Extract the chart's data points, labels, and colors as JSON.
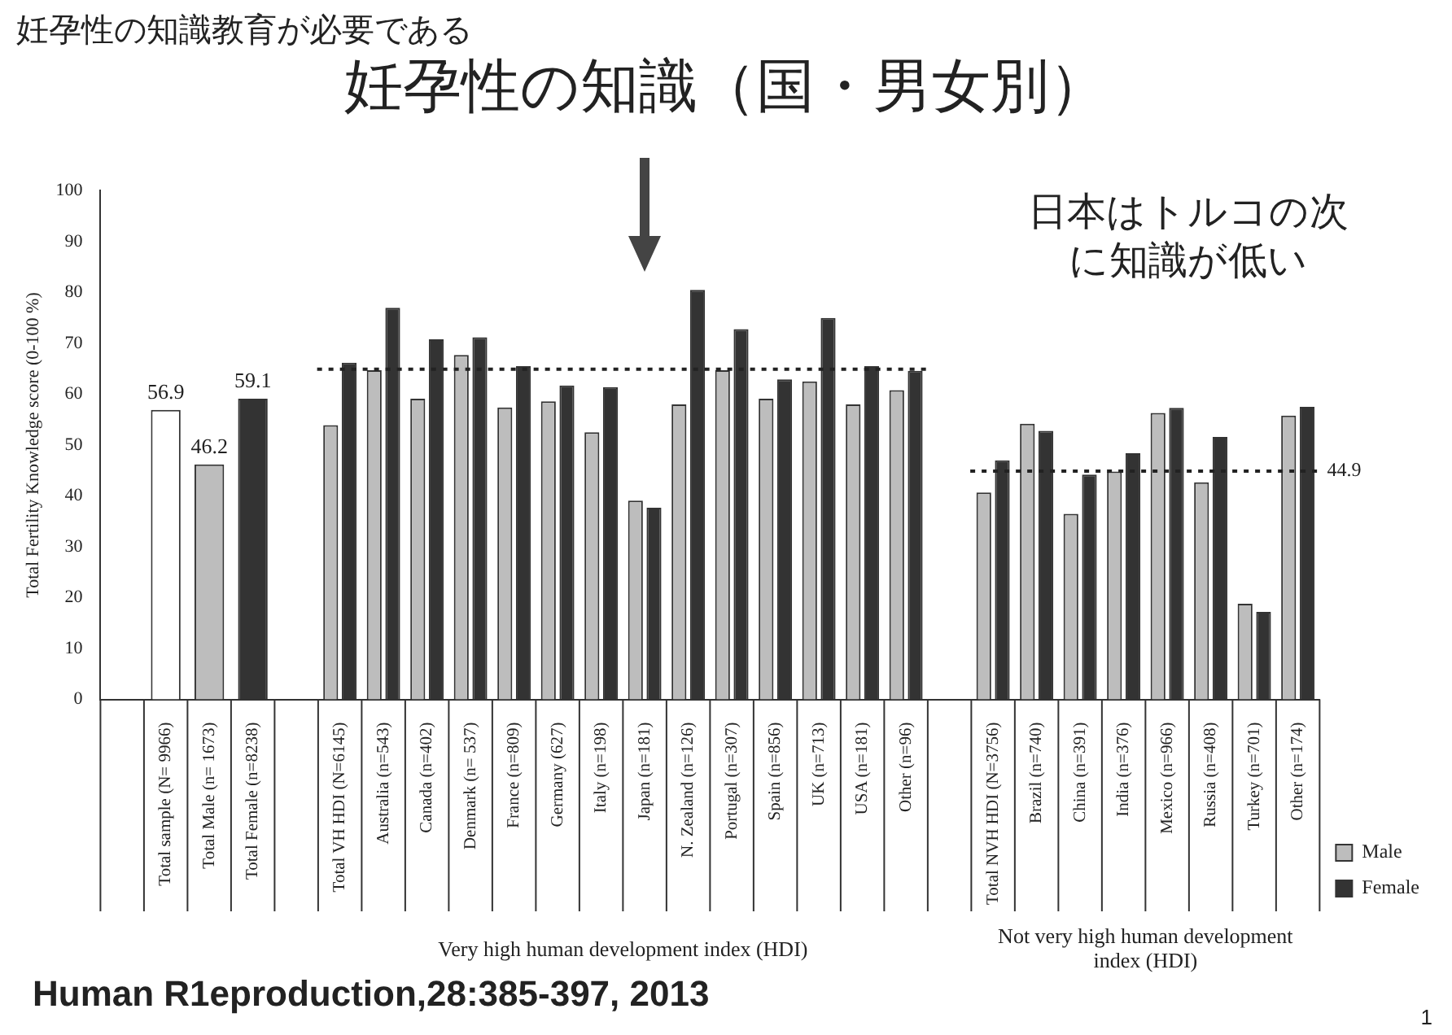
{
  "chart_data": {
    "type": "bar",
    "title": "妊孕性の知識教育が必要である",
    "subtitle": "妊孕性の知識（国・男女別）",
    "ylabel": "Total Fertility Knowledge score (0-100 %)",
    "categories": [
      null,
      "Total sample (N= 9966)",
      "Total Male (n= 1673)",
      "Total Female (n=8238)",
      null,
      "Total VH HDI (N=6145)",
      "Australia (n=543)",
      "Canada (n=402)",
      "Denmark (n= 537)",
      "France (n=809)",
      "Germany (627)",
      "Italy (n=198)",
      "Japan (n=181)",
      "N. Zealand (n=126)",
      "Portugal (n=307)",
      "Spain (n=856)",
      "UK (n=713)",
      "USA (n=181)",
      "Other (n=96)",
      null,
      "Total NVH HDI (N=3756)",
      "Brazil (n=740)",
      "China (n=391)",
      "India (n=376)",
      "Mexico (n=966)",
      "Russia (n=408)",
      "Turkey (n=701)",
      "Other (n=174)"
    ],
    "series": [
      {
        "color": "#ffffff",
        "values": [
          null,
          56.9,
          null,
          null,
          null,
          null,
          null,
          null,
          null,
          null,
          null,
          null,
          null,
          null,
          null,
          null,
          null,
          null,
          null,
          null,
          null,
          null,
          null,
          null,
          null,
          null,
          null,
          null
        ],
        "value_labels": [
          null,
          "56.9",
          null,
          null,
          null,
          null,
          null,
          null,
          null,
          null,
          null,
          null,
          null,
          null,
          null,
          null,
          null,
          null,
          null,
          null,
          null,
          null,
          null,
          null,
          null,
          null,
          null,
          null
        ]
      },
      {
        "name": "Male",
        "color": "#bdbdbd",
        "values": [
          null,
          null,
          46.2,
          null,
          null,
          53.9,
          64.7,
          59.1,
          67.7,
          57.4,
          58.6,
          52.5,
          39.1,
          58.0,
          64.7,
          59.1,
          62.5,
          58.0,
          60.8,
          null,
          40.7,
          54.2,
          36.5,
          44.8,
          56.3,
          42.7,
          18.8,
          55.8
        ],
        "value_labels": [
          null,
          null,
          "46.2",
          null,
          null,
          null,
          null,
          null,
          null,
          null,
          null,
          null,
          null,
          null,
          null,
          null,
          null,
          null,
          null,
          null,
          null,
          null,
          null,
          null,
          null,
          null,
          null,
          null
        ]
      },
      {
        "name": "Female",
        "color": "#333333",
        "values": [
          null,
          null,
          null,
          59.1,
          null,
          66.2,
          77.0,
          70.8,
          71.2,
          65.5,
          61.7,
          61.4,
          37.7,
          80.5,
          72.8,
          62.9,
          75.0,
          65.5,
          64.6,
          null,
          47.0,
          52.8,
          44.2,
          48.4,
          57.3,
          51.6,
          17.2,
          57.5
        ],
        "value_labels": [
          null,
          null,
          null,
          "59.1",
          null,
          null,
          null,
          null,
          null,
          null,
          null,
          null,
          null,
          null,
          null,
          null,
          null,
          null,
          null,
          null,
          null,
          null,
          null,
          null,
          null,
          null,
          null,
          null
        ]
      }
    ],
    "ylim": [
      0,
      100
    ],
    "yticks": [
      0,
      10,
      20,
      30,
      40,
      50,
      60,
      70,
      80,
      90,
      100
    ],
    "grid": false,
    "legend": "bottom right",
    "ref_lines": [
      {
        "axis": "y",
        "value": 64.9,
        "line_style": "dotted",
        "color": "#222222"
      },
      {
        "axis": "y",
        "value": 44.9,
        "label": "44.9",
        "line_style": "dotted",
        "color": "#222222"
      }
    ],
    "annotations": [
      "日本はトルコの次に知識が低い",
      "Very high human development index (HDI)",
      "Not very high human development index (HDI)",
      "Human R1eproduction,28:385-397, 2013",
      "1"
    ]
  }
}
